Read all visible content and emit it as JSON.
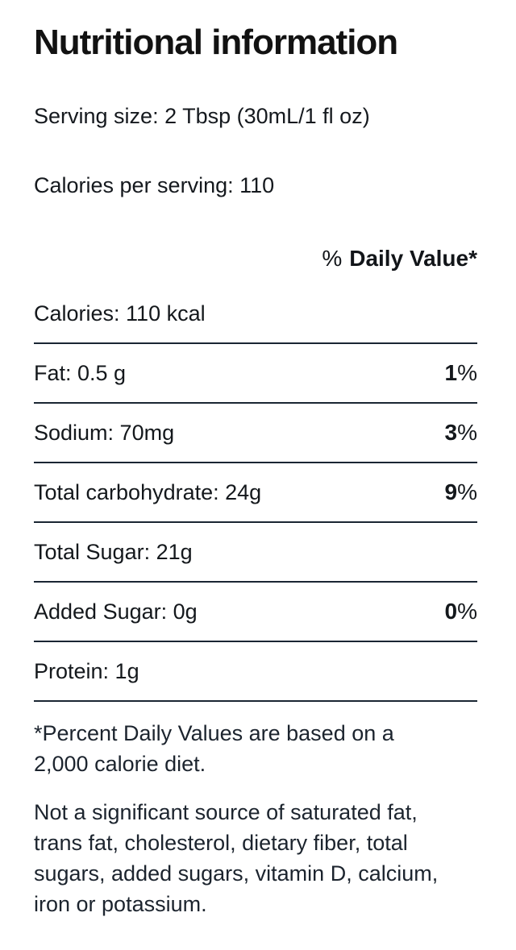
{
  "header": {
    "title": "Nutritional information"
  },
  "summary": {
    "serving_size": "Serving size: 2 Tbsp (30mL/1 fl oz)",
    "calories_per_serving": "Calories per serving: 110"
  },
  "table": {
    "daily_value_header": {
      "percent_sign": "%",
      "label": "Daily Value*"
    },
    "rows": [
      {
        "label": "Calories: 110 kcal"
      },
      {
        "label": "Fat: 0.5 g",
        "value_number": "1",
        "value_suffix": "%"
      },
      {
        "label": "Sodium: 70mg",
        "value_number": "3",
        "value_suffix": "%"
      },
      {
        "label": "Total carbohydrate: 24g",
        "value_number": "9",
        "value_suffix": "%"
      },
      {
        "label": "Total Sugar: 21g"
      },
      {
        "label": "Added Sugar: 0g",
        "value_number": "0",
        "value_suffix": "%"
      },
      {
        "label": "Protein: 1g"
      }
    ]
  },
  "footnotes": {
    "daily_value": "*Percent Daily Values are based on a\n2,000 calorie diet.",
    "not_significant": "Not a significant source of saturated fat,\ntrans fat, cholesterol, dietary fiber, total\nsugars, added sugars, vitamin D, calcium,\niron or potassium."
  },
  "colors": {
    "background": "#ffffff",
    "text": "#14181c",
    "rule": "#1a2633"
  }
}
